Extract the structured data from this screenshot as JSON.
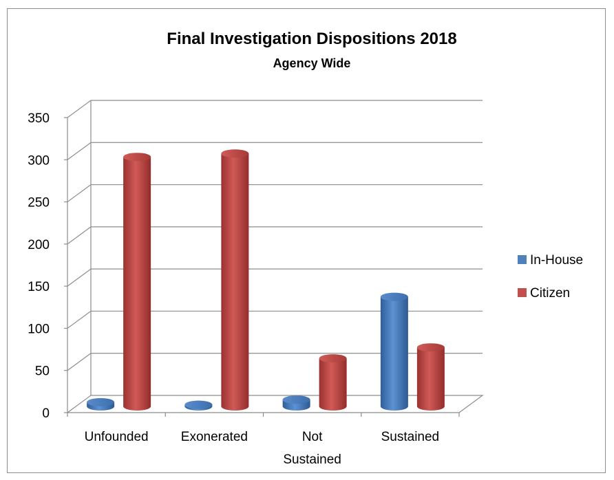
{
  "chart_data": {
    "type": "bar",
    "title": "Final Investigation Dispositions 2018",
    "subtitle": "Agency Wide",
    "categories": [
      "Unfounded",
      "Exonerated",
      "Not Sustained",
      "Sustained"
    ],
    "category_lines": [
      [
        "Unfounded"
      ],
      [
        "Exonerated"
      ],
      [
        "Not",
        "Sustained"
      ],
      [
        "Sustained"
      ]
    ],
    "series": [
      {
        "name": "In-House",
        "color": "#4f81bd",
        "values": [
          5,
          2,
          8,
          130
        ]
      },
      {
        "name": "Citizen",
        "color": "#c0504d",
        "values": [
          296,
          300,
          57,
          70
        ]
      }
    ],
    "ylim": [
      0,
      350
    ],
    "yticks": [
      "0",
      "50",
      "100",
      "150",
      "200",
      "250",
      "300",
      "350"
    ],
    "grid": true,
    "three_d": true,
    "legend_position": "right"
  }
}
